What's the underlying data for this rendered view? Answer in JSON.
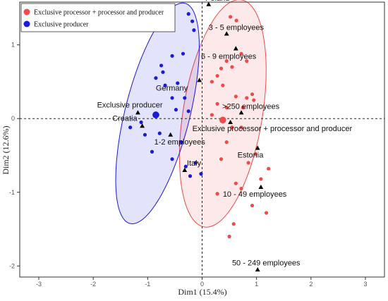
{
  "chart_data": {
    "type": "scatter",
    "xlabel": "Dim1 (15.4%)",
    "ylabel": "Dim2 (12.6%)",
    "xlim": [
      -3.35,
      3.35
    ],
    "ylim": [
      -2.15,
      1.58
    ],
    "x_ticks": [
      -3,
      -2,
      -1,
      0,
      1,
      2,
      3
    ],
    "y_ticks": [
      -2,
      -1,
      0,
      1
    ],
    "x_tick_labels": [
      "-3",
      "-2",
      "-1",
      "0",
      "1",
      "2",
      "3"
    ],
    "y_tick_labels": [
      "-2",
      "-1",
      "0",
      "1"
    ],
    "legend": {
      "placement": "top-left",
      "entries": [
        {
          "label": "Exclusive processor + processor and producer",
          "color": "#ef4b4b"
        },
        {
          "label": "Exclusive producer",
          "color": "#1a1adb"
        }
      ]
    },
    "series": [
      {
        "name": "Exclusive processor + processor and producer",
        "color": "#ef4b4b",
        "centroid": [
          0.38,
          -0.02
        ],
        "ellipse": {
          "cx": 0.38,
          "cy": 0.07,
          "rx": 1.58,
          "ry": 0.72,
          "angle_deg": 76
        },
        "points": [
          [
            0.52,
            1.38
          ],
          [
            0.63,
            1.33
          ],
          [
            0.72,
            0.88
          ],
          [
            0.82,
            0.78
          ],
          [
            0.45,
            0.78
          ],
          [
            0.55,
            0.7
          ],
          [
            0.28,
            0.58
          ],
          [
            0.38,
            0.45
          ],
          [
            0.92,
            0.33
          ],
          [
            0.82,
            0.28
          ],
          [
            0.62,
            0.3
          ],
          [
            0.95,
            0.25
          ],
          [
            0.28,
            0.2
          ],
          [
            0.45,
            0.15
          ],
          [
            0.75,
            0.15
          ],
          [
            0.18,
            0.05
          ],
          [
            0.55,
            -0.12
          ],
          [
            0.72,
            -0.12
          ],
          [
            0.45,
            -0.32
          ],
          [
            0.35,
            -0.55
          ],
          [
            0.85,
            -0.6
          ],
          [
            1.22,
            -0.68
          ],
          [
            0.98,
            -0.48
          ],
          [
            1.08,
            -0.82
          ],
          [
            0.62,
            -0.88
          ],
          [
            0.72,
            -0.95
          ],
          [
            0.28,
            -1.02
          ],
          [
            0.92,
            -1.18
          ],
          [
            1.18,
            -1.28
          ],
          [
            0.58,
            -1.43
          ],
          [
            0.5,
            -1.6
          ],
          [
            0.18,
            0.5
          ],
          [
            0.35,
            0.68
          ]
        ]
      },
      {
        "name": "Exclusive producer",
        "color": "#1a1adb",
        "centroid": [
          -0.85,
          0.05
        ],
        "ellipse": {
          "cx": -0.82,
          "cy": 0.07,
          "rx": 1.58,
          "ry": 0.58,
          "angle_deg": 70
        },
        "points": [
          [
            -0.25,
            1.42
          ],
          [
            -0.18,
            1.32
          ],
          [
            -0.15,
            1.2
          ],
          [
            -0.35,
            0.88
          ],
          [
            -0.55,
            0.85
          ],
          [
            -0.75,
            0.72
          ],
          [
            -0.72,
            0.63
          ],
          [
            -0.85,
            0.55
          ],
          [
            -0.68,
            0.45
          ],
          [
            -0.45,
            0.48
          ],
          [
            -0.55,
            0.28
          ],
          [
            -0.32,
            0.28
          ],
          [
            -0.48,
            0.12
          ],
          [
            -0.25,
            0.1
          ],
          [
            -0.82,
            0.05
          ],
          [
            -1.12,
            -0.05
          ],
          [
            -1.32,
            -0.12
          ],
          [
            -1.05,
            -0.22
          ],
          [
            -0.92,
            -0.45
          ],
          [
            -0.38,
            -0.32
          ],
          [
            -0.55,
            -0.55
          ],
          [
            -0.3,
            -0.65
          ],
          [
            -0.22,
            -0.78
          ],
          [
            -0.02,
            -0.75
          ],
          [
            -0.12,
            -0.6
          ],
          [
            -0.78,
            -0.2
          ]
        ]
      }
    ],
    "annotations": [
      {
        "label": "Poland",
        "x": 0.12,
        "y": 1.55,
        "label_x": 0.06,
        "label_y": 1.6,
        "anchor": "start"
      },
      {
        "label": "3 - 5 employees",
        "x": 0.45,
        "y": 1.15,
        "label_x": 0.12,
        "label_y": 1.2,
        "anchor": "start"
      },
      {
        "label": "6 - 9 employees",
        "x": 0.62,
        "y": 0.95,
        "label_x": -0.02,
        "label_y": 0.81,
        "anchor": "start"
      },
      {
        "label": "Germany",
        "x": -0.05,
        "y": 0.52,
        "label_x": -0.85,
        "label_y": 0.38,
        "anchor": "start"
      },
      {
        "label": "Exclusive producer",
        "x": -1.18,
        "y": 0.08,
        "label_x": -1.93,
        "label_y": 0.15,
        "anchor": "start"
      },
      {
        "label": "Croatia",
        "x": -1.1,
        "y": -0.1,
        "label_x": -1.65,
        "label_y": -0.03,
        "anchor": "start"
      },
      {
        "label": ">250 employees",
        "x": 0.72,
        "y": 0.08,
        "label_x": 0.37,
        "label_y": 0.13,
        "anchor": "start"
      },
      {
        "label": "Exclusive processor + processor and producer",
        "x": 0.52,
        "y": -0.05,
        "label_x": -0.18,
        "label_y": -0.17,
        "anchor": "start"
      },
      {
        "label": "1-2 employees",
        "x": -0.58,
        "y": -0.22,
        "label_x": -0.88,
        "label_y": -0.35,
        "anchor": "start"
      },
      {
        "label": "Estonia",
        "x": 1.02,
        "y": -0.4,
        "label_x": 0.65,
        "label_y": -0.53,
        "anchor": "start"
      },
      {
        "label": "Italy",
        "x": -0.32,
        "y": -0.7,
        "label_x": -0.28,
        "label_y": -0.64,
        "anchor": "start"
      },
      {
        "label": "10 - 49 employees",
        "x": 1.08,
        "y": -0.93,
        "label_x": 0.38,
        "label_y": -1.06,
        "anchor": "start"
      },
      {
        "label": "50 - 249 employees",
        "x": 1.02,
        "y": -2.05,
        "label_x": 0.55,
        "label_y": -1.99,
        "anchor": "start"
      }
    ]
  }
}
